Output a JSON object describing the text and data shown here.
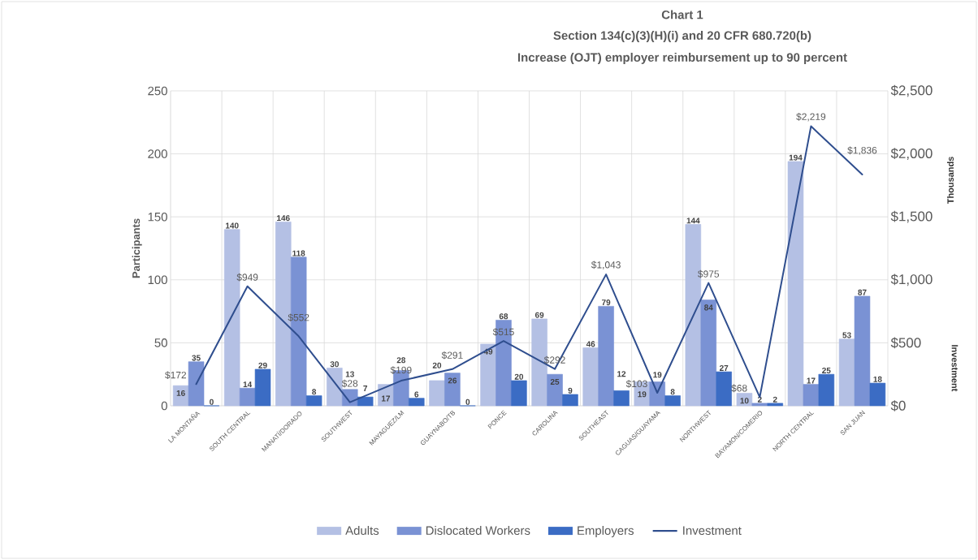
{
  "chart_data": {
    "type": "bar",
    "title": "Chart 1",
    "subtitle": "Section 134(c)(3)(H)(i) and 20 CFR 680.720(b)",
    "annotations": [
      "Increase (OJT) employer reimbursement up to 90 percent",
      "Thousands"
    ],
    "ylabel": "Participants",
    "y2label": "Investment",
    "categories": [
      "LA MONTAÑA",
      "SOUTH CENTRAL",
      "MANATÍ/DORADO",
      "SOUTHWEST",
      "MAYAGUEZ/LM",
      "GUAYNABO/TB",
      "PONCE",
      "CAROLINA",
      "SOUTHEAST",
      "CAGUAS/GUAYAMA",
      "NORTHWEST",
      "BAYAMON/COMERIO",
      "NORTH CENTRAL",
      "SAN JUAN"
    ],
    "series": [
      {
        "name": "Adults",
        "color": "#b4c0e4",
        "values": [
          16,
          140,
          146,
          30,
          17,
          20,
          49,
          69,
          46,
          19,
          144,
          10,
          194,
          53
        ]
      },
      {
        "name": "Dislocated Workers",
        "color": "#7a92d4",
        "values": [
          35,
          14,
          118,
          13,
          28,
          26,
          68,
          25,
          79,
          19,
          84,
          2,
          17,
          87
        ]
      },
      {
        "name": "Employers",
        "color": "#3b6cc4",
        "values": [
          0,
          29,
          8,
          7,
          6,
          0,
          20,
          9,
          12,
          8,
          27,
          2,
          25,
          18
        ]
      },
      {
        "name": "Investment",
        "type": "line",
        "axis": "y2",
        "color": "#2f4e8e",
        "values": [
          172,
          949,
          552,
          28,
          199,
          291,
          515,
          292,
          1043,
          103,
          975,
          68,
          2219,
          1836
        ],
        "value_labels": [
          "$172",
          "$949",
          "$552",
          "$28",
          "$199",
          "$291",
          "$515",
          "$292",
          "$1,043",
          "$103",
          "$975",
          "$68",
          "$2,219",
          "$1,836"
        ]
      }
    ],
    "ylim": [
      0,
      250
    ],
    "yticks": [
      0,
      50,
      100,
      150,
      200,
      250
    ],
    "y2lim": [
      0,
      2500
    ],
    "y2ticks": [
      {
        "value": 0,
        "label": "$0"
      },
      {
        "value": 500,
        "label": "$500"
      },
      {
        "value": 1000,
        "label": "$1,000"
      },
      {
        "value": 1500,
        "label": "$1,500"
      },
      {
        "value": 2000,
        "label": "$2,000"
      },
      {
        "value": 2500,
        "label": "$2,500"
      }
    ],
    "data_labels": true,
    "grid": true,
    "legend": "bottom",
    "marker": "none",
    "line_style": "solid"
  }
}
